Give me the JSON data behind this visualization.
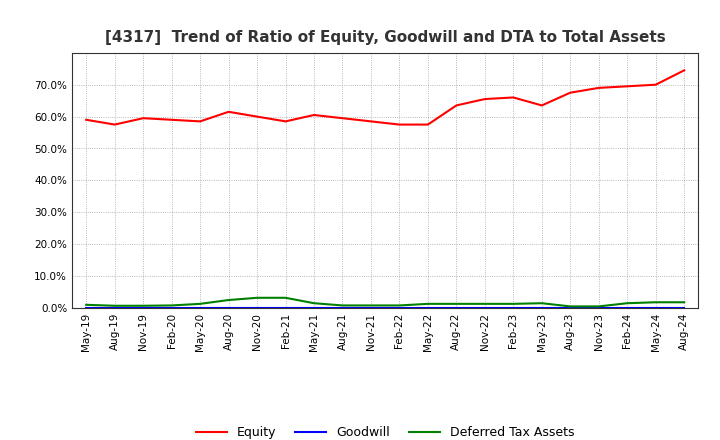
{
  "title": "[4317]  Trend of Ratio of Equity, Goodwill and DTA to Total Assets",
  "x_labels": [
    "May-19",
    "Aug-19",
    "Nov-19",
    "Feb-20",
    "May-20",
    "Aug-20",
    "Nov-20",
    "Feb-21",
    "May-21",
    "Aug-21",
    "Nov-21",
    "Feb-22",
    "May-22",
    "Aug-22",
    "Nov-22",
    "Feb-23",
    "May-23",
    "Aug-23",
    "Nov-23",
    "Feb-24",
    "May-24",
    "Aug-24"
  ],
  "equity": [
    59.0,
    57.5,
    59.5,
    59.0,
    58.5,
    61.5,
    60.0,
    58.5,
    60.5,
    59.5,
    58.5,
    57.5,
    57.5,
    63.5,
    65.5,
    66.0,
    63.5,
    67.5,
    69.0,
    69.5,
    70.0,
    74.5
  ],
  "goodwill": [
    0.0,
    0.0,
    0.0,
    0.0,
    0.0,
    0.0,
    0.0,
    0.0,
    0.0,
    0.0,
    0.0,
    0.0,
    0.0,
    0.0,
    0.0,
    0.0,
    0.0,
    0.0,
    0.0,
    0.0,
    0.0,
    0.0
  ],
  "dta": [
    1.0,
    0.7,
    0.7,
    0.8,
    1.3,
    2.5,
    3.2,
    3.2,
    1.5,
    0.8,
    0.8,
    0.8,
    1.3,
    1.3,
    1.3,
    1.3,
    1.5,
    0.5,
    0.5,
    1.5,
    1.8,
    1.8
  ],
  "equity_color": "#FF0000",
  "goodwill_color": "#0000FF",
  "dta_color": "#008000",
  "ylim": [
    0,
    80
  ],
  "yticks": [
    0,
    10,
    20,
    30,
    40,
    50,
    60,
    70
  ],
  "background_color": "#FFFFFF",
  "plot_bg_color": "#FFFFFF",
  "grid_color": "#999999",
  "title_fontsize": 11,
  "tick_fontsize": 7.5,
  "legend_fontsize": 9
}
